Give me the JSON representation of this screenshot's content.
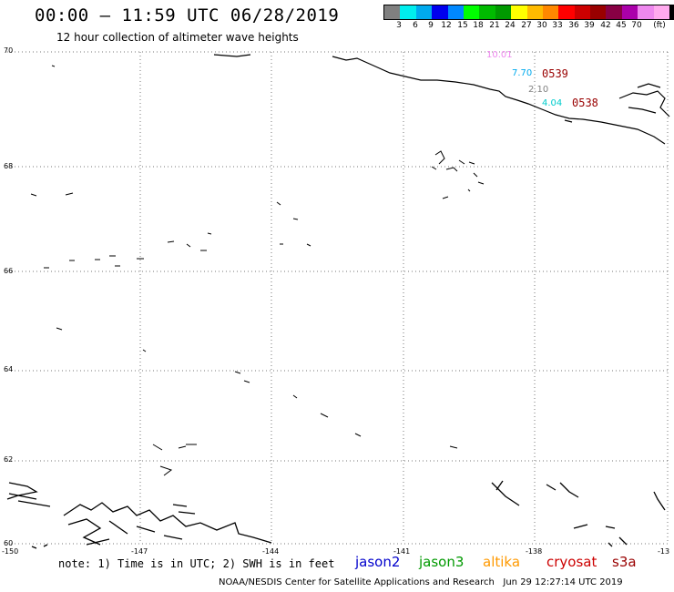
{
  "header": {
    "title": "00:00 – 11:59 UTC 06/28/2019",
    "subtitle": "12 hour collection of altimeter wave heights"
  },
  "legend": {
    "unit": "(ft)",
    "colors": [
      "#808080",
      "#00eeee",
      "#00aaee",
      "#0000ee",
      "#0088ff",
      "#00ff00",
      "#00bb00",
      "#009900",
      "#ffff00",
      "#ffbb00",
      "#ff8800",
      "#ff0000",
      "#cc0000",
      "#990000",
      "#880044",
      "#aa00aa",
      "#ee88ee",
      "#ffaaee",
      "#000000"
    ],
    "ticks": [
      "3",
      "6",
      "9",
      "12",
      "15",
      "18",
      "21",
      "24",
      "27",
      "30",
      "33",
      "36",
      "39",
      "42",
      "45",
      "70"
    ]
  },
  "axes": {
    "y_labels": [
      "70",
      "68",
      "66",
      "64",
      "62",
      "60"
    ],
    "x_labels": [
      "-150",
      "-147",
      "-144",
      "-141",
      "-138",
      "-13"
    ]
  },
  "observations": [
    {
      "value": "10.01",
      "color": "#ee88ee"
    },
    {
      "value": "7.70",
      "color": "#00aaee"
    },
    {
      "value": "2.10",
      "color": "#808080"
    },
    {
      "value": "4.04",
      "color": "#00cccc"
    }
  ],
  "passes": [
    {
      "time": "0539",
      "color": "#990000"
    },
    {
      "time": "0538",
      "color": "#990000"
    }
  ],
  "footer": {
    "note": "note: 1) Time is in UTC; 2) SWH is in feet",
    "satellites": [
      {
        "name": "jason2",
        "color": "#0000cc"
      },
      {
        "name": "jason3",
        "color": "#009900"
      },
      {
        "name": "altika",
        "color": "#ff9900"
      },
      {
        "name": "cryosat",
        "color": "#cc0000"
      },
      {
        "name": "s3a",
        "color": "#990000"
      }
    ],
    "credit": "NOAA/NESDIS Center for Satellite Applications and Research   Jun 29 12:27:14 UTC 2019"
  }
}
